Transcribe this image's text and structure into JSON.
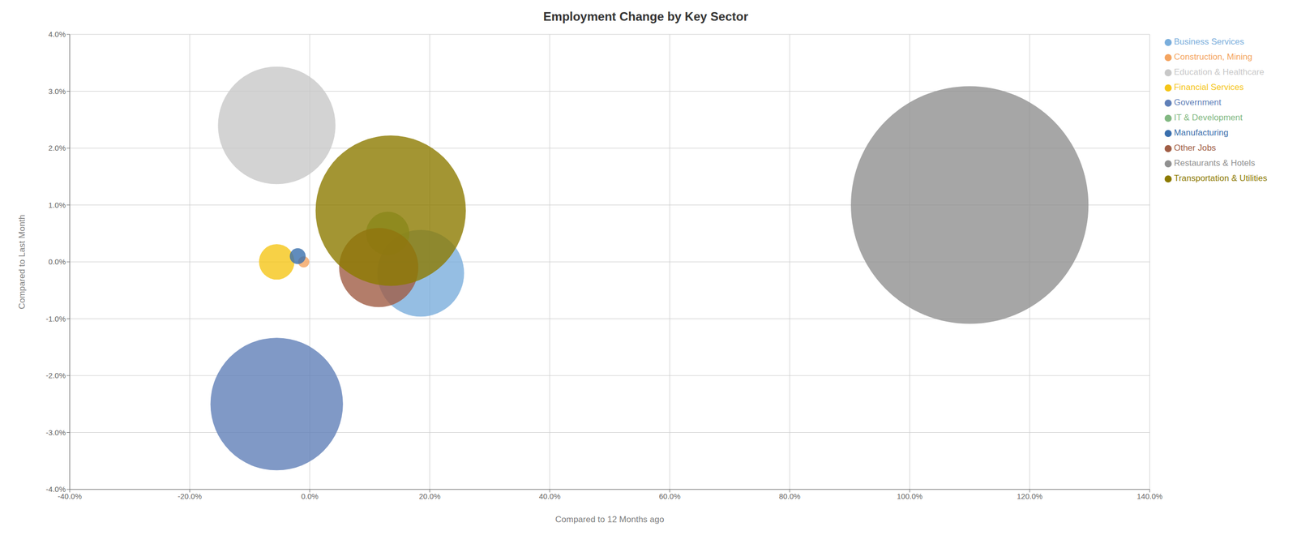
{
  "chart_data": {
    "type": "scatter",
    "title": "Employment Change by Key Sector",
    "xlabel": "Compared to 12 Months ago",
    "ylabel": "Compared to Last Month",
    "xlim": [
      -0.4,
      1.4
    ],
    "ylim": [
      -0.04,
      0.04
    ],
    "xticks": [
      {
        "value": -0.4,
        "label": "-40.0%"
      },
      {
        "value": -0.2,
        "label": "-20.0%"
      },
      {
        "value": 0.0,
        "label": "0.0%"
      },
      {
        "value": 0.2,
        "label": "20.0%"
      },
      {
        "value": 0.4,
        "label": "40.0%"
      },
      {
        "value": 0.6,
        "label": "60.0%"
      },
      {
        "value": 0.8,
        "label": "80.0%"
      },
      {
        "value": 1.0,
        "label": "100.0%"
      },
      {
        "value": 1.2,
        "label": "120.0%"
      },
      {
        "value": 1.4,
        "label": "140.0%"
      }
    ],
    "yticks": [
      {
        "value": -0.04,
        "label": "-4.0%"
      },
      {
        "value": -0.03,
        "label": "-3.0%"
      },
      {
        "value": -0.02,
        "label": "-2.0%"
      },
      {
        "value": -0.01,
        "label": "-1.0%"
      },
      {
        "value": 0.0,
        "label": "0.0%"
      },
      {
        "value": 0.01,
        "label": "1.0%"
      },
      {
        "value": 0.02,
        "label": "2.0%"
      },
      {
        "value": 0.03,
        "label": "3.0%"
      },
      {
        "value": 0.04,
        "label": "4.0%"
      }
    ],
    "grid": true,
    "legend": "right",
    "series": [
      {
        "name": "Business Services",
        "x": 0.185,
        "y": -0.002,
        "size": 12000,
        "color": "#7aaedc"
      },
      {
        "name": "Construction, Mining",
        "x": -0.01,
        "y": 0.0,
        "size": 200,
        "color": "#f4a460"
      },
      {
        "name": "Education & Healthcare",
        "x": -0.055,
        "y": 0.024,
        "size": 22000,
        "color": "#c8c8c8"
      },
      {
        "name": "Financial Services",
        "x": -0.055,
        "y": 0.0,
        "size": 2000,
        "color": "#f5c518"
      },
      {
        "name": "Government",
        "x": -0.055,
        "y": -0.025,
        "size": 28000,
        "color": "#6080b8"
      },
      {
        "name": "IT & Development",
        "x": 0.13,
        "y": 0.005,
        "size": 3000,
        "color": "#82b882"
      },
      {
        "name": "Manufacturing",
        "x": -0.02,
        "y": 0.001,
        "size": 400,
        "color": "#3a6fad"
      },
      {
        "name": "Other Jobs",
        "x": 0.115,
        "y": -0.001,
        "size": 10000,
        "color": "#a05d45"
      },
      {
        "name": "Restaurants & Hotels",
        "x": 1.1,
        "y": 0.01,
        "size": 90000,
        "color": "#909090"
      },
      {
        "name": "Transportation & Utilities",
        "x": 0.135,
        "y": 0.009,
        "size": 36000,
        "color": "#8c7a00"
      }
    ]
  }
}
